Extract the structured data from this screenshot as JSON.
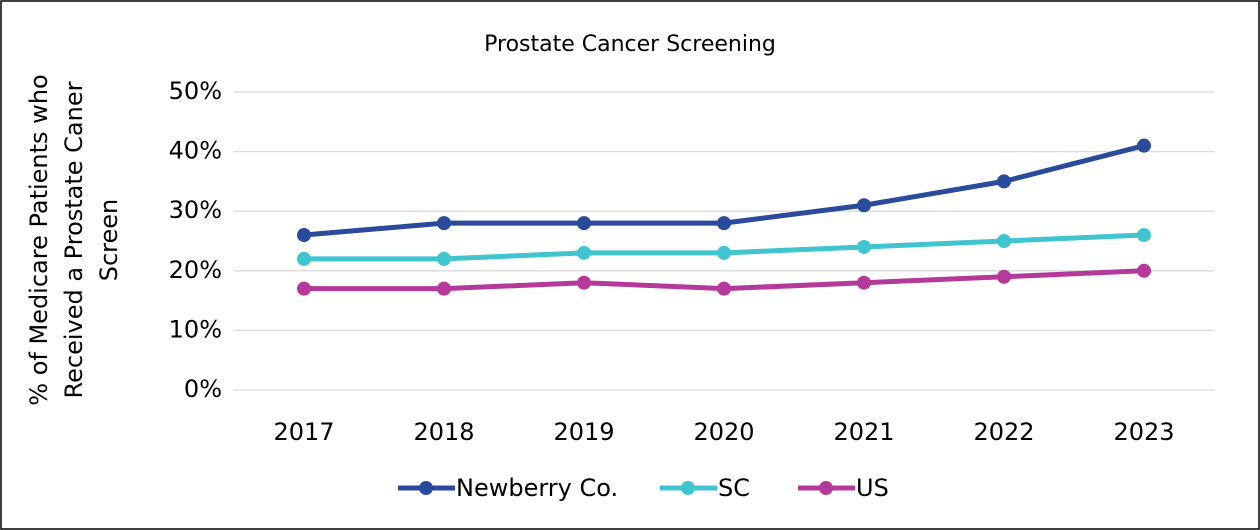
{
  "chart_data": {
    "type": "line",
    "title": "Prostate Cancer Screening",
    "y_label": [
      "% of Medicare Patients who",
      "Received a Prostate Caner",
      "Screen"
    ],
    "categories": [
      "2017",
      "2018",
      "2019",
      "2020",
      "2021",
      "2022",
      "2023"
    ],
    "series": [
      {
        "name": "Newberry Co.",
        "color": "#2a4a9c",
        "values": [
          26,
          28,
          28,
          28,
          31,
          35,
          41
        ]
      },
      {
        "name": "SC",
        "color": "#40c4d0",
        "values": [
          22,
          22,
          23,
          23,
          24,
          25,
          26
        ]
      },
      {
        "name": "US",
        "color": "#b4399b",
        "values": [
          17,
          17,
          18,
          17,
          18,
          19,
          20
        ]
      }
    ],
    "ylim": [
      0,
      50
    ],
    "yticks": [
      {
        "value": 0,
        "label": "0%"
      },
      {
        "value": 10,
        "label": "10%"
      },
      {
        "value": 20,
        "label": "20%"
      },
      {
        "value": 30,
        "label": "30%"
      },
      {
        "value": 40,
        "label": "40%"
      },
      {
        "value": 50,
        "label": "50%"
      }
    ],
    "grid": true,
    "legend": "bottom"
  }
}
